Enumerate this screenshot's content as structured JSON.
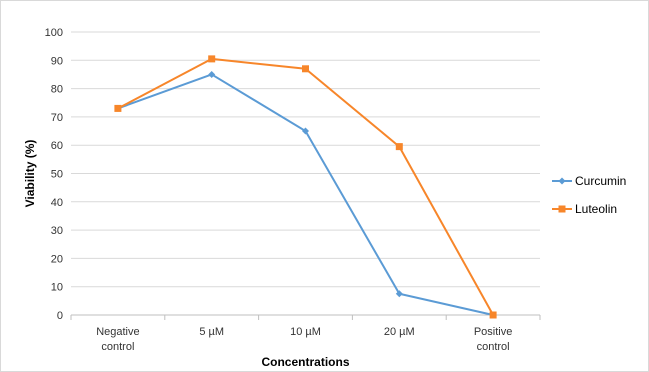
{
  "chart_data": {
    "type": "line",
    "title": "",
    "xlabel": "Concentrations",
    "ylabel": "Viability (%)",
    "ylim": [
      0,
      100
    ],
    "yticks": [
      0,
      10,
      20,
      30,
      40,
      50,
      60,
      70,
      80,
      90,
      100
    ],
    "categories": [
      [
        "Negative",
        "control"
      ],
      [
        "5 µM"
      ],
      [
        "10 µM"
      ],
      [
        "20 µM"
      ],
      [
        "Positive",
        "control"
      ]
    ],
    "grid": "horizontal",
    "legend": "right",
    "series": [
      {
        "name": "Curcumin",
        "color": "#5b9bd5",
        "marker": "diamond",
        "values": [
          73,
          85,
          65,
          7.5,
          0
        ]
      },
      {
        "name": "Luteolin",
        "color": "#f7862a",
        "marker": "square",
        "values": [
          73,
          90.5,
          87,
          59.5,
          0
        ]
      }
    ]
  }
}
